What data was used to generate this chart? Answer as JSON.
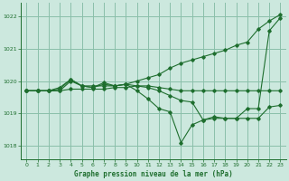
{
  "title": "Graphe pression niveau de la mer (hPa)",
  "background_color": "#cce8de",
  "grid_color": "#8abfaa",
  "line_color": "#1e6e2e",
  "xlim": [
    -0.5,
    23.5
  ],
  "ylim": [
    1017.6,
    1022.4
  ],
  "yticks": [
    1018,
    1019,
    1020,
    1021,
    1022
  ],
  "xticks": [
    0,
    1,
    2,
    3,
    4,
    5,
    6,
    7,
    8,
    9,
    10,
    11,
    12,
    13,
    14,
    15,
    16,
    17,
    18,
    19,
    20,
    21,
    22,
    23
  ],
  "series": [
    {
      "x": [
        0,
        1,
        2,
        3,
        4,
        5,
        6,
        7,
        8,
        9,
        10,
        11,
        12,
        13,
        14,
        15,
        16,
        17,
        18,
        19,
        20,
        21,
        22,
        23
      ],
      "y": [
        1019.7,
        1019.7,
        1019.7,
        1019.7,
        1020.0,
        1019.85,
        1019.85,
        1019.85,
        1019.85,
        1019.9,
        1020.0,
        1020.1,
        1020.2,
        1020.4,
        1020.55,
        1020.65,
        1020.75,
        1020.85,
        1020.95,
        1021.1,
        1021.2,
        1021.6,
        1021.85,
        1022.05
      ]
    },
    {
      "x": [
        0,
        1,
        2,
        3,
        4,
        5,
        6,
        7,
        8,
        9,
        10,
        11,
        12,
        13,
        14,
        15,
        16,
        17,
        18,
        19,
        20,
        21,
        22,
        23
      ],
      "y": [
        1019.7,
        1019.7,
        1019.7,
        1019.75,
        1020.05,
        1019.85,
        1019.8,
        1019.9,
        1019.85,
        1019.9,
        1019.7,
        1019.45,
        1019.15,
        1019.05,
        1018.1,
        1018.65,
        1018.8,
        1018.9,
        1018.85,
        1018.85,
        1019.15,
        1019.15,
        1021.55,
        1021.95
      ]
    },
    {
      "x": [
        0,
        1,
        2,
        3,
        4,
        5,
        6,
        7,
        8,
        9,
        10,
        11,
        12,
        13,
        14,
        15,
        16,
        17,
        18,
        19,
        20,
        21,
        22,
        23
      ],
      "y": [
        1019.7,
        1019.7,
        1019.7,
        1019.7,
        1019.75,
        1019.75,
        1019.75,
        1019.75,
        1019.8,
        1019.8,
        1019.85,
        1019.85,
        1019.8,
        1019.75,
        1019.7,
        1019.7,
        1019.7,
        1019.7,
        1019.7,
        1019.7,
        1019.7,
        1019.7,
        1019.7,
        1019.7
      ]
    },
    {
      "x": [
        0,
        1,
        2,
        3,
        4,
        5,
        6,
        7,
        8,
        9,
        10,
        11,
        12,
        13,
        14,
        15,
        16,
        17,
        18,
        19,
        20,
        21,
        22,
        23
      ],
      "y": [
        1019.7,
        1019.7,
        1019.7,
        1019.8,
        1020.05,
        1019.85,
        1019.8,
        1019.95,
        1019.85,
        1019.9,
        1019.85,
        1019.8,
        1019.7,
        1019.55,
        1019.4,
        1019.35,
        1018.8,
        1018.85,
        1018.85,
        1018.85,
        1018.85,
        1018.85,
        1019.2,
        1019.25
      ]
    }
  ]
}
